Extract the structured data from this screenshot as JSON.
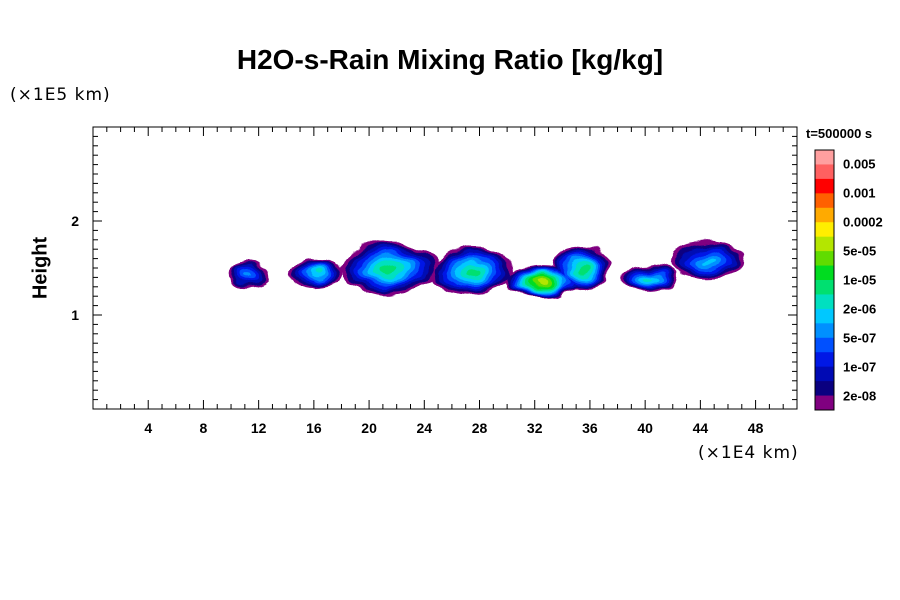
{
  "chart_data": {
    "type": "heatmap",
    "title": "H2O-s-Rain Mixing Ratio [kg/kg]",
    "ylabel": "Height",
    "xlabel": "",
    "x_unit_label": "(×1E4 km)",
    "y_unit_label": "(×1E5 km)",
    "x_ticks": [
      "4",
      "8",
      "12",
      "16",
      "20",
      "24",
      "28",
      "32",
      "36",
      "40",
      "44",
      "48"
    ],
    "y_ticks": [
      "1",
      "2"
    ],
    "xlim": [
      0,
      51
    ],
    "ylim": [
      0,
      3
    ],
    "colorbar": {
      "title": "t=500000 s",
      "labels": [
        "0.005",
        "0.001",
        "0.0002",
        "5e-05",
        "1e-05",
        "2e-06",
        "5e-07",
        "1e-07",
        "2e-08"
      ],
      "colors": [
        "#ff9f9f",
        "#ff6060",
        "#ff0000",
        "#ff6000",
        "#ffaa00",
        "#ffee00",
        "#b4e600",
        "#60dc00",
        "#00dc20",
        "#00e070",
        "#00e0c0",
        "#00c8ff",
        "#0090ff",
        "#0050ff",
        "#0018e6",
        "#000ab4",
        "#0a0080",
        "#800080"
      ]
    },
    "rain_regions": [
      {
        "x_center": 11.3,
        "y_center": 1.42,
        "width": 2.8,
        "height": 0.27,
        "peak_level": 12
      },
      {
        "x_center": 16.2,
        "y_center": 1.45,
        "width": 3.8,
        "height": 0.34,
        "peak_level": 10
      },
      {
        "x_center": 21.5,
        "y_center": 1.5,
        "width": 7.0,
        "height": 0.55,
        "peak_level": 9
      },
      {
        "x_center": 27.5,
        "y_center": 1.46,
        "width": 6.0,
        "height": 0.52,
        "peak_level": 9
      },
      {
        "x_center": 32.6,
        "y_center": 1.36,
        "width": 5.5,
        "height": 0.34,
        "peak_level": 6
      },
      {
        "x_center": 35.5,
        "y_center": 1.5,
        "width": 4.0,
        "height": 0.5,
        "peak_level": 9
      },
      {
        "x_center": 40.3,
        "y_center": 1.38,
        "width": 4.0,
        "height": 0.32,
        "peak_level": 10
      },
      {
        "x_center": 44.5,
        "y_center": 1.58,
        "width": 5.5,
        "height": 0.4,
        "peak_level": 11
      }
    ]
  }
}
